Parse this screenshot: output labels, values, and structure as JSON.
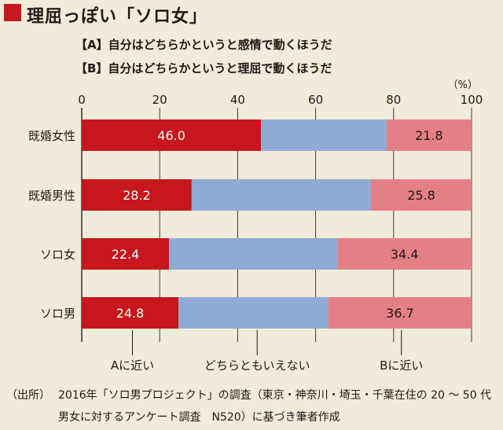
{
  "title": "理屈っぽい「ソロ女」",
  "legend": {
    "a": "【A】自分はどちらかというと感情で動くほうだ",
    "b": "【B】自分はどちらかというと理屈で動くほうだ"
  },
  "unit": "（%）",
  "source": {
    "label": "（出所）",
    "line1": "2016年「ソロ男プロジェクト」の調査（東京・神奈川・埼玉・千葉在住の 20 ～ 50 代",
    "line2": "男女に対するアンケート調査　N520）に基づき筆者作成"
  },
  "colors": {
    "a": "#c8161d",
    "middle": "#8fabd3",
    "b": "#e57f86",
    "background": "#f1ebda",
    "grid": "#3e3a39"
  },
  "chart_data": {
    "type": "bar",
    "orientation": "horizontal",
    "stacked": true,
    "xlim": [
      0,
      100
    ],
    "xticks": [
      0,
      20,
      40,
      60,
      80,
      100
    ],
    "categories": [
      "既婚女性",
      "既婚男性",
      "ソロ女",
      "ソロ男"
    ],
    "series": [
      {
        "key": "a",
        "values": [
          46.0,
          28.2,
          22.4,
          24.8
        ],
        "labels": [
          "46.0",
          "28.2",
          "22.4",
          "24.8"
        ]
      },
      {
        "key": "middle",
        "values": [
          32.2,
          46.0,
          43.2,
          38.5
        ],
        "labels": [
          "",
          "",
          "",
          ""
        ]
      },
      {
        "key": "b",
        "values": [
          21.8,
          25.8,
          34.4,
          36.7
        ],
        "labels": [
          "21.8",
          "25.8",
          "34.4",
          "36.7"
        ]
      }
    ],
    "bottom_labels": [
      {
        "text": "Aに近い",
        "at": 13
      },
      {
        "text": "どちらともいえない",
        "at": 45
      },
      {
        "text": "Bに近い",
        "at": 82
      }
    ]
  }
}
